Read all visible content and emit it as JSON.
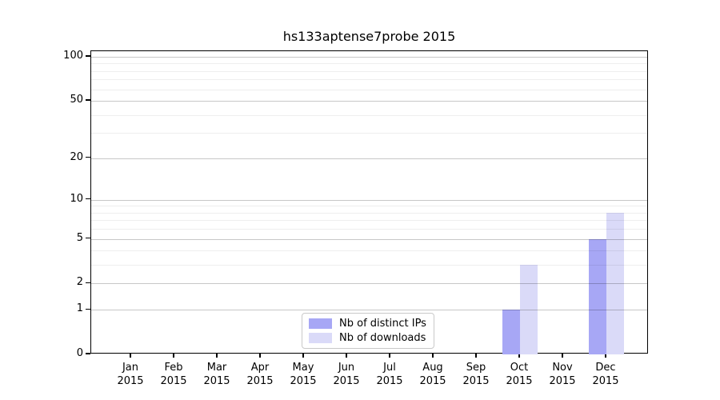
{
  "chart_data": {
    "type": "bar",
    "title": "hs133aptense7probe 2015",
    "categories": [
      "Jan 2015",
      "Feb 2015",
      "Mar 2015",
      "Apr 2015",
      "May 2015",
      "Jun 2015",
      "Jul 2015",
      "Aug 2015",
      "Sep 2015",
      "Oct 2015",
      "Nov 2015",
      "Dec 2015"
    ],
    "series": [
      {
        "name": "Nb of distinct IPs",
        "color": "#a7a7f5",
        "values": [
          0,
          0,
          0,
          0,
          0,
          0,
          0,
          0,
          0,
          1,
          0,
          5
        ]
      },
      {
        "name": "Nb of downloads",
        "color": "#dadaf8",
        "values": [
          0,
          0,
          0,
          0,
          0,
          0,
          0,
          0,
          0,
          3,
          0,
          8
        ]
      }
    ],
    "xlabel": "",
    "ylabel": "",
    "yscale": "log1p",
    "ylim": [
      0,
      110
    ],
    "yticks": [
      0,
      1,
      2,
      5,
      10,
      20,
      50,
      100
    ],
    "minor_yticks": [
      3,
      4,
      6,
      7,
      8,
      9,
      30,
      40,
      60,
      70,
      80,
      90
    ],
    "grid": "horizontal",
    "legend_position": "lower center",
    "colors": {
      "major_grid": "#c8c8c8",
      "minor_grid": "#efefef",
      "axis": "#000000",
      "background": "#ffffff"
    }
  }
}
